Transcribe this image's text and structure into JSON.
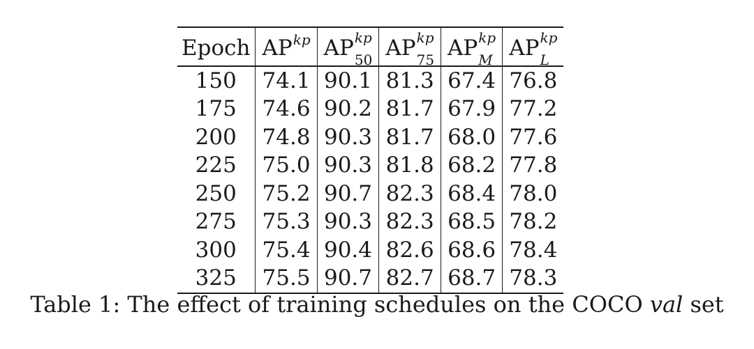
{
  "table": {
    "header": {
      "epoch": "Epoch",
      "ap": {
        "base": "AP",
        "sup": "kp"
      },
      "ap50": {
        "base": "AP",
        "sup": "kp",
        "sub": "50"
      },
      "ap75": {
        "base": "AP",
        "sup": "kp",
        "sub": "75"
      },
      "apm": {
        "base": "AP",
        "sup": "kp",
        "sub": "M"
      },
      "apl": {
        "base": "AP",
        "sup": "kp",
        "sub": "L"
      }
    },
    "rows": [
      [
        "150",
        "74.1",
        "90.1",
        "81.3",
        "67.4",
        "76.8"
      ],
      [
        "175",
        "74.6",
        "90.2",
        "81.7",
        "67.9",
        "77.2"
      ],
      [
        "200",
        "74.8",
        "90.3",
        "81.7",
        "68.0",
        "77.6"
      ],
      [
        "225",
        "75.0",
        "90.3",
        "81.8",
        "68.2",
        "77.8"
      ],
      [
        "250",
        "75.2",
        "90.7",
        "82.3",
        "68.4",
        "78.0"
      ],
      [
        "275",
        "75.3",
        "90.3",
        "82.3",
        "68.5",
        "78.2"
      ],
      [
        "300",
        "75.4",
        "90.4",
        "82.6",
        "68.6",
        "78.4"
      ],
      [
        "325",
        "75.5",
        "90.7",
        "82.7",
        "68.7",
        "78.3"
      ]
    ]
  },
  "caption": {
    "prefix": "Table 1: The effect of training schedules on the COCO ",
    "italic": "val",
    "suffix": " set"
  }
}
